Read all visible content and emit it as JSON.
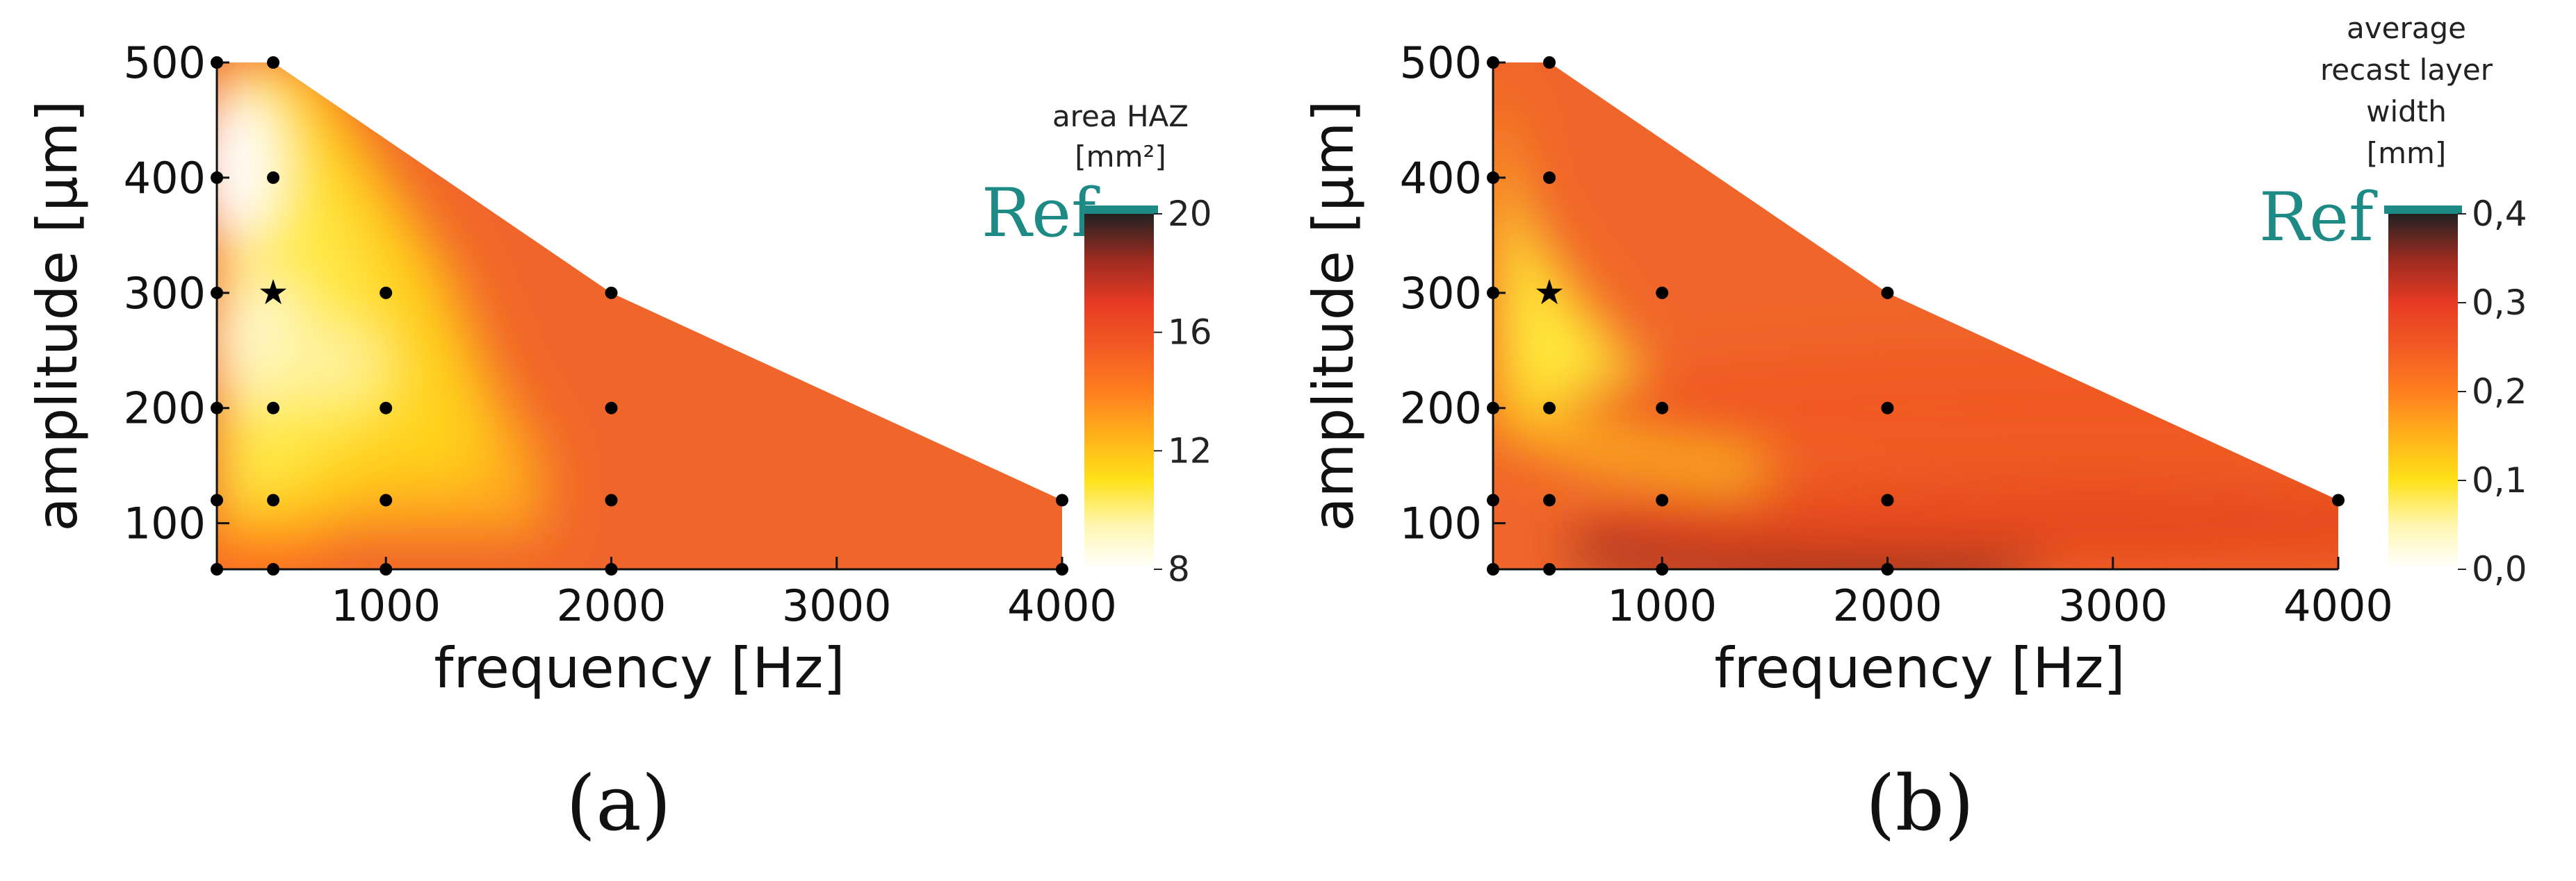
{
  "chart_data": [
    {
      "type": "heatmap",
      "panel_label": "(a)",
      "xlabel": "frequency [Hz]",
      "ylabel": "amplitude [µm]",
      "xlim": [
        250,
        4000
      ],
      "ylim": [
        60,
        500
      ],
      "x_ticks": [
        "1000",
        "2000",
        "3000",
        "4000"
      ],
      "x_tick_values": [
        1000,
        2000,
        3000,
        4000
      ],
      "y_ticks": [
        "100",
        "200",
        "300",
        "400",
        "500"
      ],
      "y_tick_values": [
        100,
        200,
        300,
        400,
        500
      ],
      "domain_boundary": [
        [
          250,
          500
        ],
        [
          500,
          500
        ],
        [
          2000,
          300
        ],
        [
          4000,
          120
        ],
        [
          4000,
          60
        ],
        [
          250,
          60
        ]
      ],
      "measurement_points": [
        [
          250,
          500
        ],
        [
          500,
          500
        ],
        [
          500,
          400
        ],
        [
          500,
          300
        ],
        [
          1000,
          300
        ],
        [
          2000,
          300
        ],
        [
          250,
          300
        ],
        [
          250,
          200
        ],
        [
          500,
          200
        ],
        [
          1000,
          200
        ],
        [
          2000,
          200
        ],
        [
          250,
          120
        ],
        [
          500,
          120
        ],
        [
          1000,
          120
        ],
        [
          2000,
          120
        ],
        [
          4000,
          120
        ],
        [
          250,
          60
        ],
        [
          500,
          60
        ],
        [
          1000,
          60
        ],
        [
          2000,
          60
        ],
        [
          4000,
          60
        ],
        [
          250,
          400
        ]
      ],
      "optimum_point": [
        500,
        300
      ],
      "colorbar": {
        "title_lines": [
          "area HAZ",
          "[mm²]"
        ],
        "ticks": [
          "8",
          "12",
          "16",
          "20"
        ],
        "range": [
          8,
          20
        ],
        "ref_label": "Ref",
        "ref_value": 20
      }
    },
    {
      "type": "heatmap",
      "panel_label": "(b)",
      "xlabel": "frequency [Hz]",
      "ylabel": "amplitude [µm]",
      "xlim": [
        250,
        4000
      ],
      "ylim": [
        60,
        500
      ],
      "x_ticks": [
        "1000",
        "2000",
        "3000",
        "4000"
      ],
      "x_tick_values": [
        1000,
        2000,
        3000,
        4000
      ],
      "y_ticks": [
        "100",
        "200",
        "300",
        "400",
        "500"
      ],
      "y_tick_values": [
        100,
        200,
        300,
        400,
        500
      ],
      "domain_boundary": [
        [
          250,
          500
        ],
        [
          500,
          500
        ],
        [
          2000,
          300
        ],
        [
          4000,
          120
        ],
        [
          4000,
          60
        ],
        [
          250,
          60
        ]
      ],
      "measurement_points": [
        [
          250,
          500
        ],
        [
          500,
          500
        ],
        [
          500,
          400
        ],
        [
          250,
          400
        ],
        [
          1000,
          300
        ],
        [
          2000,
          300
        ],
        [
          250,
          300
        ],
        [
          250,
          200
        ],
        [
          500,
          200
        ],
        [
          1000,
          200
        ],
        [
          2000,
          200
        ],
        [
          250,
          120
        ],
        [
          500,
          120
        ],
        [
          1000,
          120
        ],
        [
          2000,
          120
        ],
        [
          4000,
          120
        ],
        [
          250,
          60
        ],
        [
          500,
          60
        ],
        [
          1000,
          60
        ],
        [
          2000,
          60
        ]
      ],
      "optimum_point": [
        500,
        300
      ],
      "colorbar": {
        "title_lines": [
          "average",
          "recast layer",
          "width",
          "[mm]"
        ],
        "ticks": [
          "0,0",
          "0,1",
          "0,2",
          "0,3",
          "0,4"
        ],
        "range": [
          0,
          0.4
        ],
        "ref_label": "Ref",
        "ref_value": 0.4
      }
    }
  ],
  "colors": {
    "ref": "#1e8a86",
    "colormap": [
      "#ffffff",
      "#fff6b0",
      "#ffe21a",
      "#ffb21a",
      "#ff7f1f",
      "#f25a23",
      "#e63b24",
      "#9a2a20",
      "#222222"
    ]
  }
}
